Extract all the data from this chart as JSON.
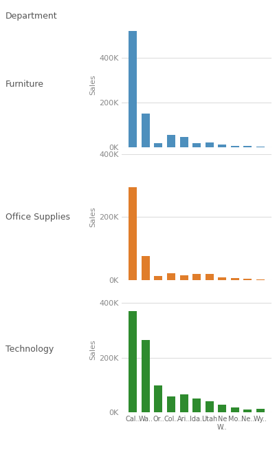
{
  "states": [
    "Cal..",
    "Wa..",
    "Or..",
    "Col..",
    "Ari..",
    "Ida..",
    "Utah",
    "Ne\nW..",
    "Mo..",
    "Ne..",
    "Wy.."
  ],
  "furniture_values": [
    520000,
    150000,
    18000,
    55000,
    45000,
    18000,
    22000,
    12000,
    8000,
    8000,
    3000
  ],
  "office_values": [
    295000,
    75000,
    12000,
    22000,
    15000,
    18000,
    20000,
    8000,
    5000,
    3000,
    1500
  ],
  "technology_values": [
    370000,
    265000,
    98000,
    58000,
    65000,
    52000,
    42000,
    28000,
    18000,
    10000,
    12000
  ],
  "furniture_color": "#4d8fbd",
  "office_color": "#e07d2a",
  "technology_color": "#2e8b2e",
  "background_color": "#ffffff",
  "grid_color": "#dddddd",
  "title": "Department",
  "dept_labels": [
    "Furniture",
    "Office Supplies",
    "Technology"
  ],
  "ylabel": "Sales",
  "yticks": [
    0,
    200000,
    400000
  ],
  "ytick_labels": [
    "0K",
    "200K",
    "400K"
  ],
  "ylims": [
    560000,
    340000,
    460000
  ]
}
